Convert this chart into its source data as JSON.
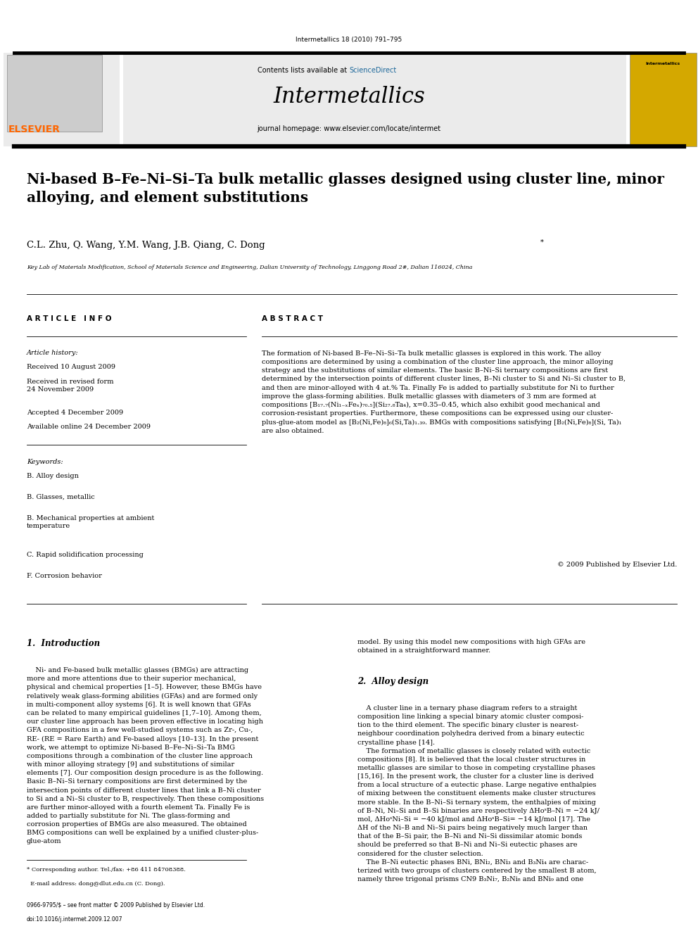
{
  "page_width": 9.92,
  "page_height": 13.23,
  "bg_color": "#ffffff",
  "top_journal_line": "Intermetallics 18 (2010) 791–795",
  "header_bg": "#e8e8e8",
  "elsevier_color": "#FF6600",
  "sciencedirect_color": "#1a6699",
  "journal_name": "Intermetallics",
  "journal_homepage": "journal homepage: www.elsevier.com/locate/intermet",
  "article_title": "Ni-based B–Fe–Ni–Si–Ta bulk metallic glasses designed using cluster line, minor\nalloying, and element substitutions",
  "affiliation": "Key Lab of Materials Modification, School of Materials Science and Engineering, Dalian University of Technology, Linggong Road 2#, Dalian 116024, China",
  "article_info_title": "A R T I C L E   I N F O",
  "abstract_title": "A B S T R A C T",
  "received": "Received 10 August 2009",
  "accepted": "Accepted 4 December 2009",
  "available": "Available online 24 December 2009",
  "keywords": [
    "B. Alloy design",
    "B. Glasses, metallic",
    "B. Mechanical properties at ambient\ntemperature",
    "C. Rapid solidification processing",
    "F. Corrosion behavior"
  ],
  "copyright_text": "© 2009 Published by Elsevier Ltd.",
  "section1_title": "1.  Introduction",
  "section2_title": "2.  Alloy design"
}
